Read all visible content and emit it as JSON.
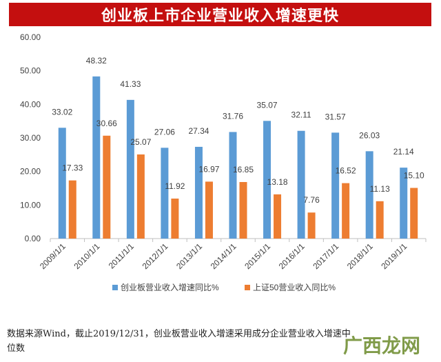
{
  "banner": {
    "title": "创业板上市企业营业收入增速更快"
  },
  "chart_data": {
    "type": "bar",
    "title": "",
    "xlabel": "",
    "ylabel": "",
    "ylim": [
      0,
      60
    ],
    "yticks": [
      "0.00",
      "10.00",
      "20.00",
      "30.00",
      "40.00",
      "50.00",
      "60.00"
    ],
    "categories": [
      "2009/1/1",
      "2010/1/1",
      "2011/1/1",
      "2012/1/1",
      "2013/1/1",
      "2014/1/1",
      "2015/1/1",
      "2016/1/1",
      "2017/1/1",
      "2018/1/1",
      "2019/1/1"
    ],
    "series": [
      {
        "name": "创业板营业收入增速同比%",
        "color": "#5b9bd5",
        "values": [
          33.02,
          48.32,
          41.33,
          27.06,
          27.34,
          31.76,
          35.07,
          32.11,
          31.57,
          26.03,
          21.14
        ]
      },
      {
        "name": "上证50营业收入同比%",
        "color": "#ed7d31",
        "values": [
          17.33,
          30.66,
          25.07,
          11.92,
          16.97,
          16.85,
          13.18,
          7.76,
          16.52,
          11.13,
          15.1
        ]
      }
    ],
    "grid": false,
    "legend": "bottom"
  },
  "footnote": {
    "line1": "数据来源Wind，截止2019/12/31，创业板营业收入增速采用成分企业营业收入增速中",
    "line2": "位数"
  },
  "watermark": {
    "text": "广西龙网"
  }
}
